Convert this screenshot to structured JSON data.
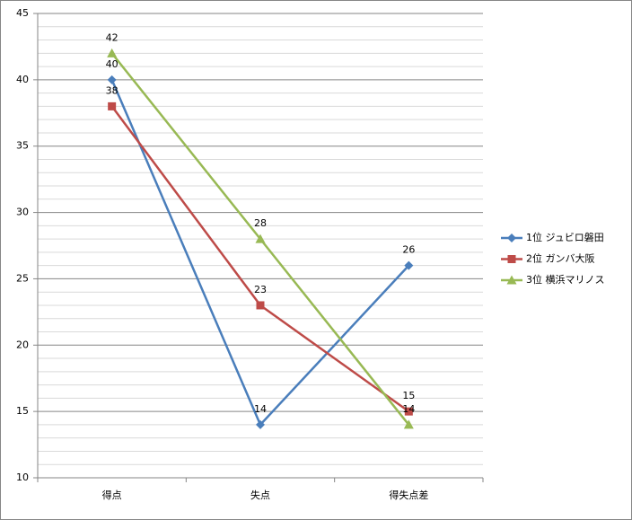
{
  "chart_data": {
    "type": "line",
    "categories": [
      "得点",
      "失点",
      "得失点差"
    ],
    "series": [
      {
        "name": "1位 ジュビロ磐田",
        "color": "#4a7ebb",
        "marker": "diamond",
        "values": [
          40,
          14,
          26
        ]
      },
      {
        "name": "2位 ガンバ大阪",
        "color": "#be4b48",
        "marker": "square",
        "values": [
          38,
          23,
          15
        ]
      },
      {
        "name": "3位 横浜マリノス",
        "color": "#98b954",
        "marker": "triangle",
        "values": [
          42,
          28,
          14
        ]
      }
    ],
    "ylim": [
      10,
      45
    ],
    "yticks": [
      10,
      15,
      20,
      25,
      30,
      35,
      40,
      45
    ],
    "minor_yticks": [
      11,
      12,
      13,
      14,
      16,
      17,
      18,
      19,
      21,
      22,
      23,
      24,
      26,
      27,
      28,
      29,
      31,
      32,
      33,
      34,
      36,
      37,
      38,
      39,
      41,
      42,
      43,
      44
    ],
    "grid": true,
    "data_labels": true,
    "legend": "right"
  }
}
